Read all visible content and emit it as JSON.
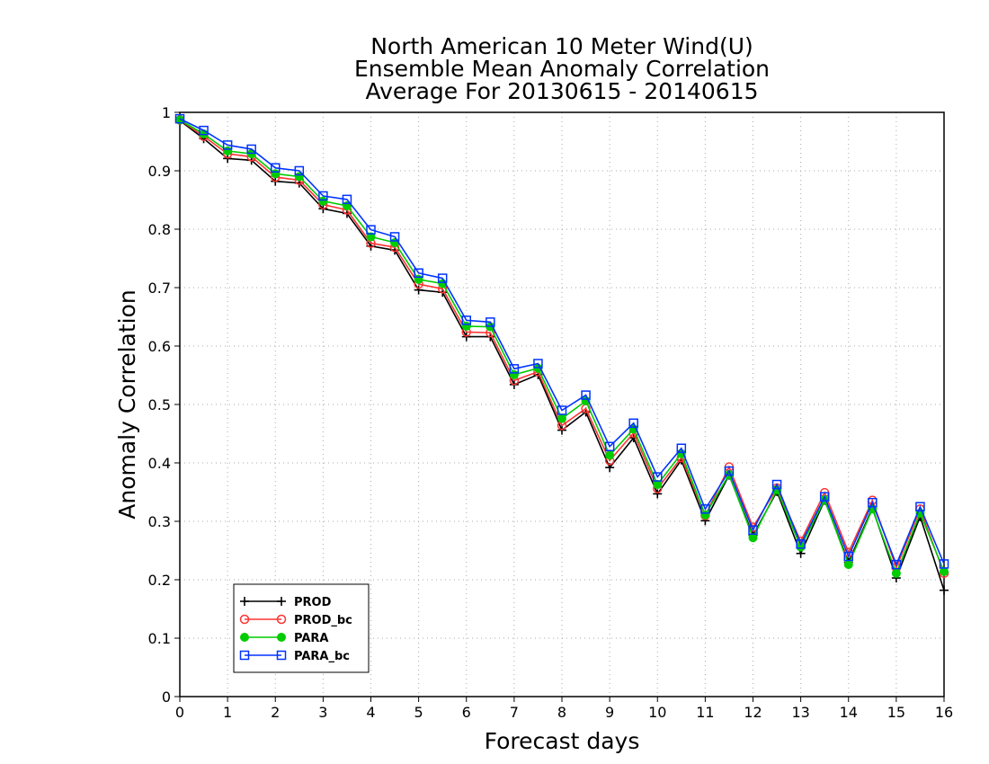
{
  "chart_data": {
    "type": "line",
    "title": [
      "North American 10 Meter Wind(U)",
      "Ensemble Mean Anomaly Correlation",
      "Average For 20130615 - 20140615"
    ],
    "xlabel": "Forecast days",
    "ylabel": "Anomaly Correlation",
    "xlim": [
      0,
      16
    ],
    "ylim": [
      0,
      1
    ],
    "xticks": [
      "0",
      "1",
      "2",
      "3",
      "4",
      "5",
      "6",
      "7",
      "8",
      "9",
      "10",
      "11",
      "12",
      "13",
      "14",
      "15",
      "16"
    ],
    "yticks": [
      "0",
      "0.1",
      "0.2",
      "0.3",
      "0.4",
      "0.5",
      "0.6",
      "0.7",
      "0.8",
      "0.9",
      "1"
    ],
    "grid": true,
    "legend_position": "bottom-left",
    "x": [
      0,
      0.5,
      1,
      1.5,
      2,
      2.5,
      3,
      3.5,
      4,
      4.5,
      5,
      5.5,
      6,
      6.5,
      7,
      7.5,
      8,
      8.5,
      9,
      9.5,
      10,
      10.5,
      11,
      11.5,
      12,
      12.5,
      13,
      13.5,
      14,
      14.5,
      15,
      15.5,
      16
    ],
    "series": [
      {
        "name": "PROD",
        "color": "#000000",
        "marker": "plus",
        "values": [
          0.986,
          0.955,
          0.921,
          0.918,
          0.882,
          0.879,
          0.835,
          0.827,
          0.771,
          0.764,
          0.696,
          0.692,
          0.616,
          0.616,
          0.534,
          0.551,
          0.456,
          0.487,
          0.392,
          0.443,
          0.347,
          0.405,
          0.301,
          0.379,
          0.276,
          0.351,
          0.245,
          0.336,
          0.23,
          0.323,
          0.203,
          0.308,
          0.182
        ]
      },
      {
        "name": "PROD_bc",
        "color": "#ff3333",
        "marker": "open-circle",
        "values": [
          0.987,
          0.959,
          0.929,
          0.924,
          0.889,
          0.884,
          0.842,
          0.833,
          0.776,
          0.769,
          0.706,
          0.698,
          0.624,
          0.623,
          0.541,
          0.556,
          0.464,
          0.493,
          0.404,
          0.451,
          0.356,
          0.409,
          0.31,
          0.393,
          0.29,
          0.357,
          0.266,
          0.349,
          0.247,
          0.336,
          0.221,
          0.321,
          0.211
        ]
      },
      {
        "name": "PARA",
        "color": "#00cc00",
        "marker": "filled-circle",
        "values": [
          0.987,
          0.963,
          0.934,
          0.929,
          0.895,
          0.89,
          0.848,
          0.84,
          0.787,
          0.777,
          0.714,
          0.707,
          0.634,
          0.633,
          0.551,
          0.562,
          0.476,
          0.506,
          0.413,
          0.458,
          0.363,
          0.416,
          0.311,
          0.38,
          0.272,
          0.354,
          0.256,
          0.337,
          0.226,
          0.321,
          0.211,
          0.314,
          0.214
        ]
      },
      {
        "name": "PARA_bc",
        "color": "#0033ff",
        "marker": "open-square",
        "values": [
          0.989,
          0.969,
          0.944,
          0.937,
          0.905,
          0.9,
          0.857,
          0.851,
          0.799,
          0.787,
          0.725,
          0.716,
          0.644,
          0.641,
          0.561,
          0.57,
          0.49,
          0.516,
          0.428,
          0.468,
          0.376,
          0.425,
          0.321,
          0.386,
          0.285,
          0.363,
          0.261,
          0.342,
          0.24,
          0.332,
          0.226,
          0.325,
          0.227
        ]
      }
    ]
  }
}
